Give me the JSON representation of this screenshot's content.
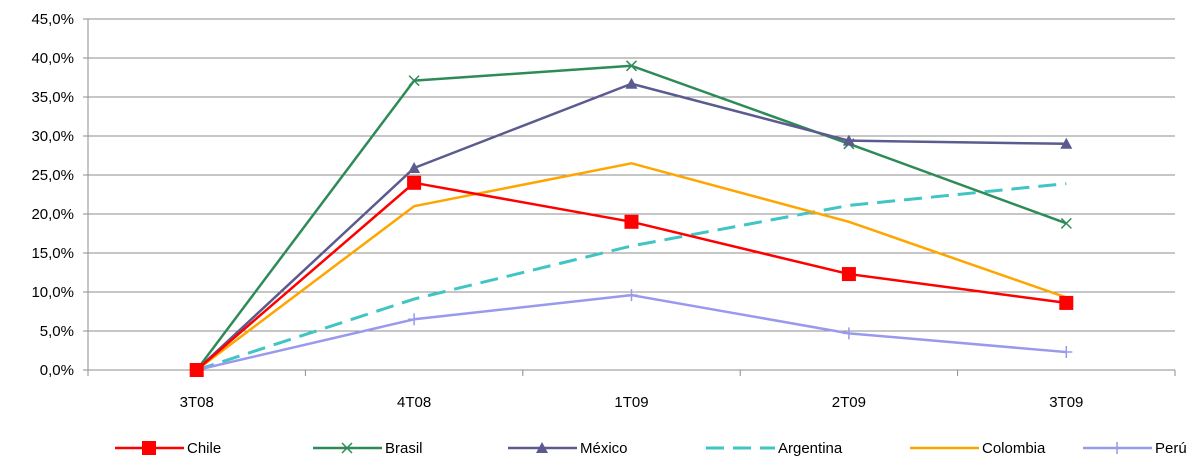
{
  "chart_data": {
    "type": "line",
    "categories": [
      "3T08",
      "4T08",
      "1T09",
      "2T09",
      "3T09"
    ],
    "ylim": [
      0,
      45
    ],
    "ytick_values": [
      0,
      5,
      10,
      15,
      20,
      25,
      30,
      35,
      40,
      45
    ],
    "ytick_labels": [
      "0,0%",
      "5,0%",
      "10,0%",
      "15,0%",
      "20,0%",
      "25,0%",
      "30,0%",
      "35,0%",
      "40,0%",
      "45,0%"
    ],
    "grid": "horizontal",
    "legend_position": "bottom",
    "series": [
      {
        "name": "Chile",
        "values": [
          0,
          24,
          19,
          12.3,
          8.6
        ],
        "color": "#ff0000",
        "marker": "square",
        "dash": "solid"
      },
      {
        "name": "Brasil",
        "values": [
          0,
          37.1,
          39,
          29,
          18.8
        ],
        "color": "#2e8b57",
        "marker": "x",
        "dash": "solid"
      },
      {
        "name": "México",
        "values": [
          0,
          25.9,
          36.7,
          29.4,
          29
        ],
        "color": "#5b5b8f",
        "marker": "triangle",
        "dash": "solid"
      },
      {
        "name": "Argentina",
        "values": [
          0,
          9.1,
          15.9,
          21.1,
          23.9
        ],
        "color": "#40c4c4",
        "marker": "none",
        "dash": "dashed"
      },
      {
        "name": "Colombia",
        "values": [
          0,
          21,
          26.5,
          19,
          9.3
        ],
        "color": "#ffa500",
        "marker": "none",
        "dash": "solid"
      },
      {
        "name": "Perú",
        "values": [
          0,
          6.5,
          9.6,
          4.7,
          2.3
        ],
        "color": "#9999ee",
        "marker": "plus",
        "dash": "solid"
      }
    ]
  }
}
